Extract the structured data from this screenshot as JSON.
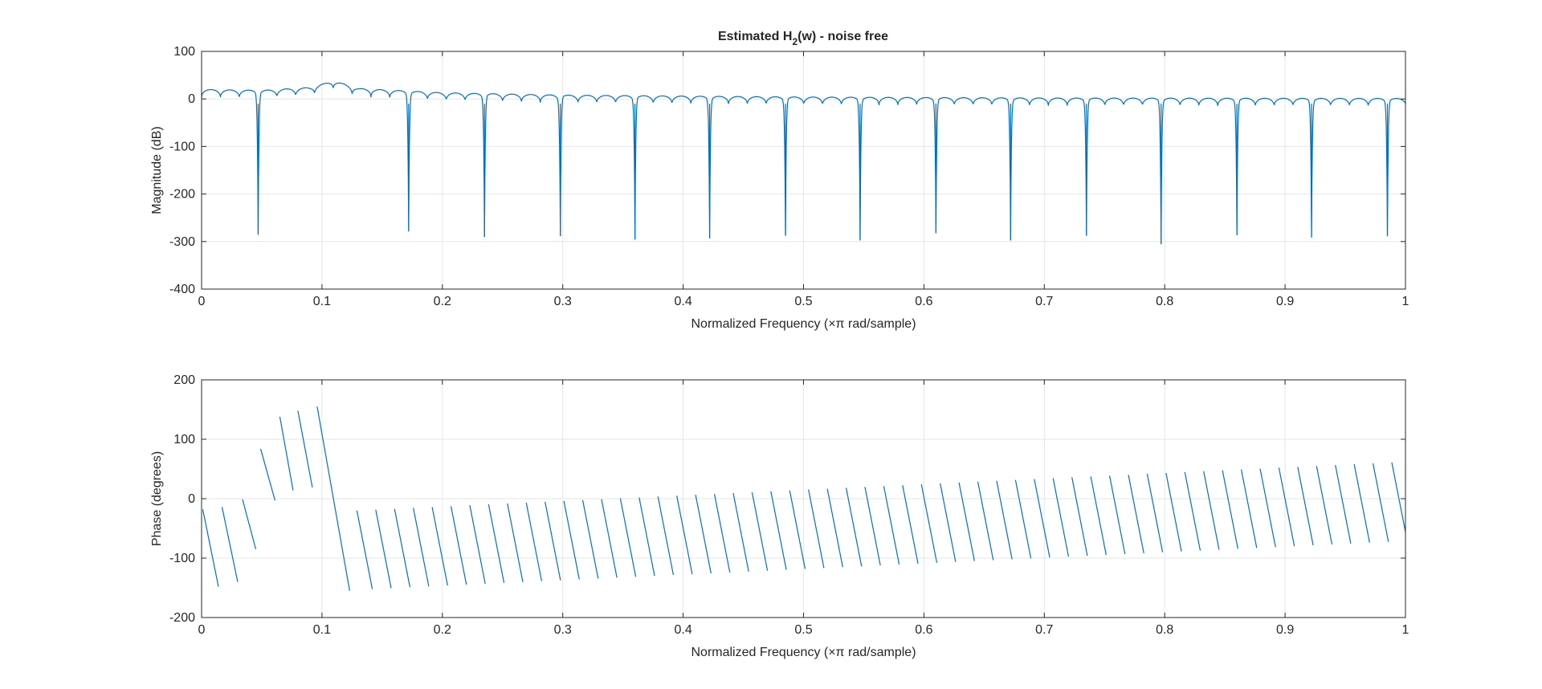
{
  "window": {
    "background": "#ffffff"
  },
  "chart_data": [
    {
      "type": "line",
      "title_main": "Estimated H",
      "title_sub": "2",
      "title_rest": "(w) - noise free",
      "xlabel": "Normalized Frequency  (×π rad/sample)",
      "ylabel": "Magnitude (dB)",
      "xlim": [
        0,
        1
      ],
      "ylim": [
        -400,
        100
      ],
      "xticks": [
        "0",
        "0.1",
        "0.2",
        "0.3",
        "0.4",
        "0.5",
        "0.6",
        "0.7",
        "0.8",
        "0.9",
        "1"
      ],
      "yticks": [
        "100",
        "0",
        "-100",
        "-200",
        "-300",
        "-400"
      ],
      "grid": true,
      "color": "#0072bd",
      "zeros": [
        {
          "f": 0.047,
          "depth": -285
        },
        {
          "f": 0.172,
          "depth": -278
        },
        {
          "f": 0.235,
          "depth": -290
        },
        {
          "f": 0.298,
          "depth": -288
        },
        {
          "f": 0.36,
          "depth": -295
        },
        {
          "f": 0.422,
          "depth": -293
        },
        {
          "f": 0.485,
          "depth": -287
        },
        {
          "f": 0.547,
          "depth": -297
        },
        {
          "f": 0.61,
          "depth": -282
        },
        {
          "f": 0.672,
          "depth": -297
        },
        {
          "f": 0.735,
          "depth": -287
        },
        {
          "f": 0.797,
          "depth": -305
        },
        {
          "f": 0.86,
          "depth": -286
        },
        {
          "f": 0.922,
          "depth": -291
        },
        {
          "f": 0.985,
          "depth": -288
        }
      ],
      "envelope": [
        {
          "f": 0.0,
          "db": 20
        },
        {
          "f": 0.05,
          "db": 18
        },
        {
          "f": 0.09,
          "db": 24
        },
        {
          "f": 0.11,
          "db": 38
        },
        {
          "f": 0.13,
          "db": 22
        },
        {
          "f": 0.2,
          "db": 13
        },
        {
          "f": 0.3,
          "db": 8
        },
        {
          "f": 0.5,
          "db": 4
        },
        {
          "f": 0.7,
          "db": 2
        },
        {
          "f": 1.0,
          "db": 1
        }
      ],
      "lobe_spacing": 0.01563
    },
    {
      "type": "line",
      "xlabel": "Normalized Frequency  (×π rad/sample)",
      "ylabel": "Phase (degrees)",
      "xlim": [
        0,
        1
      ],
      "ylim": [
        -200,
        200
      ],
      "xticks": [
        "0",
        "0.1",
        "0.2",
        "0.3",
        "0.4",
        "0.5",
        "0.6",
        "0.7",
        "0.8",
        "0.9",
        "1"
      ],
      "yticks": [
        "200",
        "100",
        "0",
        "-100",
        "-200"
      ],
      "grid": true,
      "color": "#0072bd",
      "segments": [
        {
          "x0": 0.001,
          "y0": -18,
          "x1": 0.014,
          "y1": -148
        },
        {
          "x0": 0.017,
          "y0": -14,
          "x1": 0.03,
          "y1": -140
        },
        {
          "x0": 0.034,
          "y0": -1,
          "x1": 0.045,
          "y1": -85
        },
        {
          "x0": 0.049,
          "y0": 84,
          "x1": 0.061,
          "y1": -3
        },
        {
          "x0": 0.065,
          "y0": 138,
          "x1": 0.076,
          "y1": 14
        },
        {
          "x0": 0.08,
          "y0": 148,
          "x1": 0.092,
          "y1": 19
        },
        {
          "x0": 0.096,
          "y0": 155,
          "x1": 0.123,
          "y1": -155
        }
      ],
      "ramp": {
        "start_f": 0.129,
        "spacing": 0.01563,
        "top_start": -20,
        "top_end": 62,
        "bottom_start": -152,
        "bottom_end": -70,
        "end_f": 1.0
      }
    }
  ]
}
